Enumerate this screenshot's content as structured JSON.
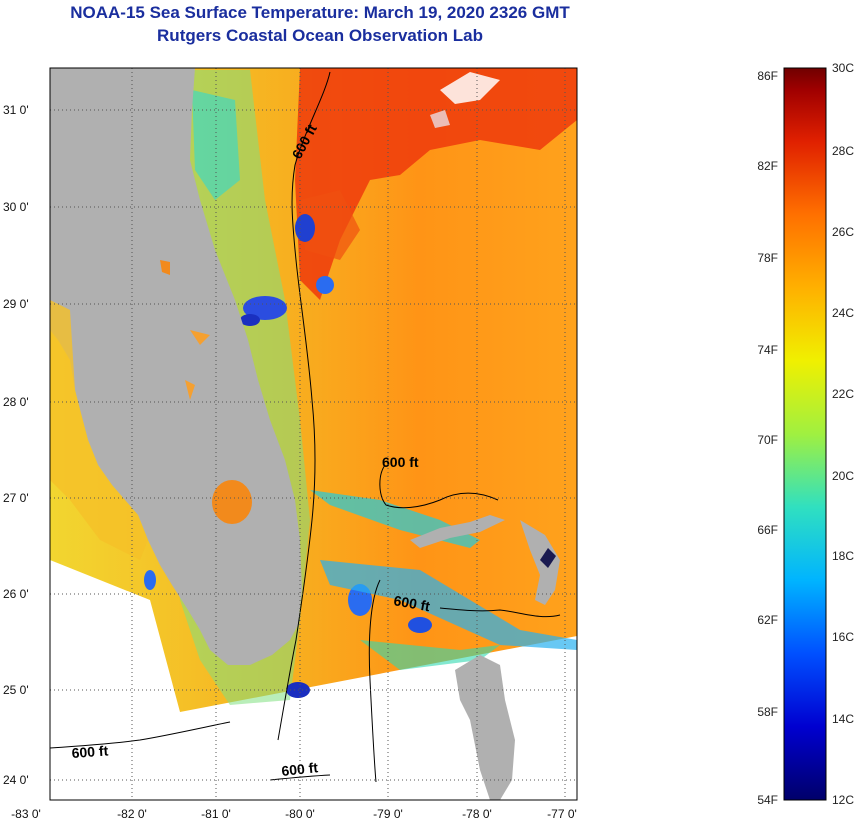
{
  "header": {
    "title": "NOAA-15 Sea Surface Temperature:  March 19, 2020 2326 GMT",
    "subtitle": "Rutgers Coastal Ocean Observation Lab"
  },
  "map": {
    "lat_labels": [
      "31 0'",
      "30 0'",
      "29 0'",
      "28 0'",
      "27 0'",
      "26 0'",
      "25 0'",
      "24 0'"
    ],
    "lon_labels": [
      "-83 0'",
      "-82 0'",
      "-81 0'",
      "-80 0'",
      "-79 0'",
      "-78 0'",
      "-77 0'"
    ],
    "contour_labels": [
      "600 ft",
      "600 ft",
      "600 ft",
      "600 ft",
      "600 ft"
    ]
  },
  "colorbar": {
    "fahrenheit_labels": [
      "86F",
      "82F",
      "78F",
      "74F",
      "70F",
      "66F",
      "62F",
      "58F",
      "54F"
    ],
    "celsius_labels": [
      "30C",
      "28C",
      "26C",
      "24C",
      "22C",
      "20C",
      "18C",
      "16C",
      "14C",
      "12C"
    ],
    "colors": [
      "#00006a",
      "#0000d0",
      "#0050ff",
      "#00b4ff",
      "#30e0c0",
      "#a0f040",
      "#f0f000",
      "#ffb000",
      "#ff7000",
      "#e02000",
      "#a00000",
      "#700000"
    ]
  },
  "colors": {
    "title": "#1a2e9e",
    "land": "#b0b0b0",
    "warm_water": "#ff8a10",
    "hot_water": "#ee3a0c",
    "cool_water": "#2a6cf0",
    "mid_water": "#f5d020"
  }
}
